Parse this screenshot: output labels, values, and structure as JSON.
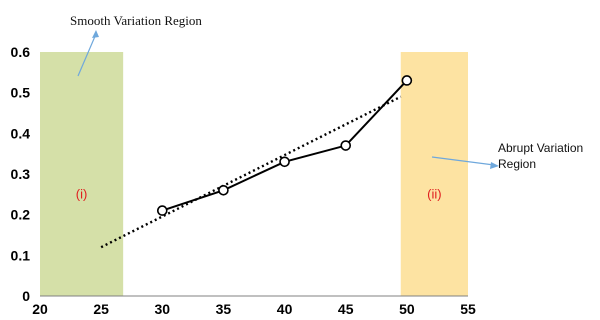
{
  "chart_data": {
    "type": "line",
    "title": "",
    "xlabel": "",
    "ylabel": "",
    "xlim": [
      20,
      55
    ],
    "ylim": [
      0,
      0.6
    ],
    "x_ticks": [
      "20",
      "25",
      "30",
      "35",
      "40",
      "45",
      "50",
      "55"
    ],
    "y_ticks": [
      "0",
      "0.1",
      "0.2",
      "0.3",
      "0.4",
      "0.5",
      "0.6"
    ],
    "grid": false,
    "legend": "none",
    "series": [
      {
        "x": [
          30,
          35,
          40,
          45,
          50
        ],
        "y": [
          0.21,
          0.26,
          0.33,
          0.37,
          0.53
        ],
        "color": "#000000",
        "marker": "open-circle"
      }
    ],
    "trendline": {
      "style": "dotted",
      "color": "#000000",
      "x": [
        25,
        49.5
      ],
      "y": [
        0.12,
        0.49
      ]
    },
    "regions": [
      {
        "label": "(i)",
        "x_range": [
          20,
          26.8
        ],
        "color": "#d5e0a8",
        "label_color": "#e02020"
      },
      {
        "label": "(ii)",
        "x_range": [
          49.5,
          55
        ],
        "color": "#fde3a2",
        "label_color": "#e02020"
      }
    ],
    "annotations": [
      {
        "text": "Smooth Variation Region",
        "arrow_color": "#6fa8dc"
      },
      {
        "text_lines": [
          "Abrupt Variation",
          "Region"
        ],
        "arrow_color": "#6fa8dc"
      }
    ]
  }
}
